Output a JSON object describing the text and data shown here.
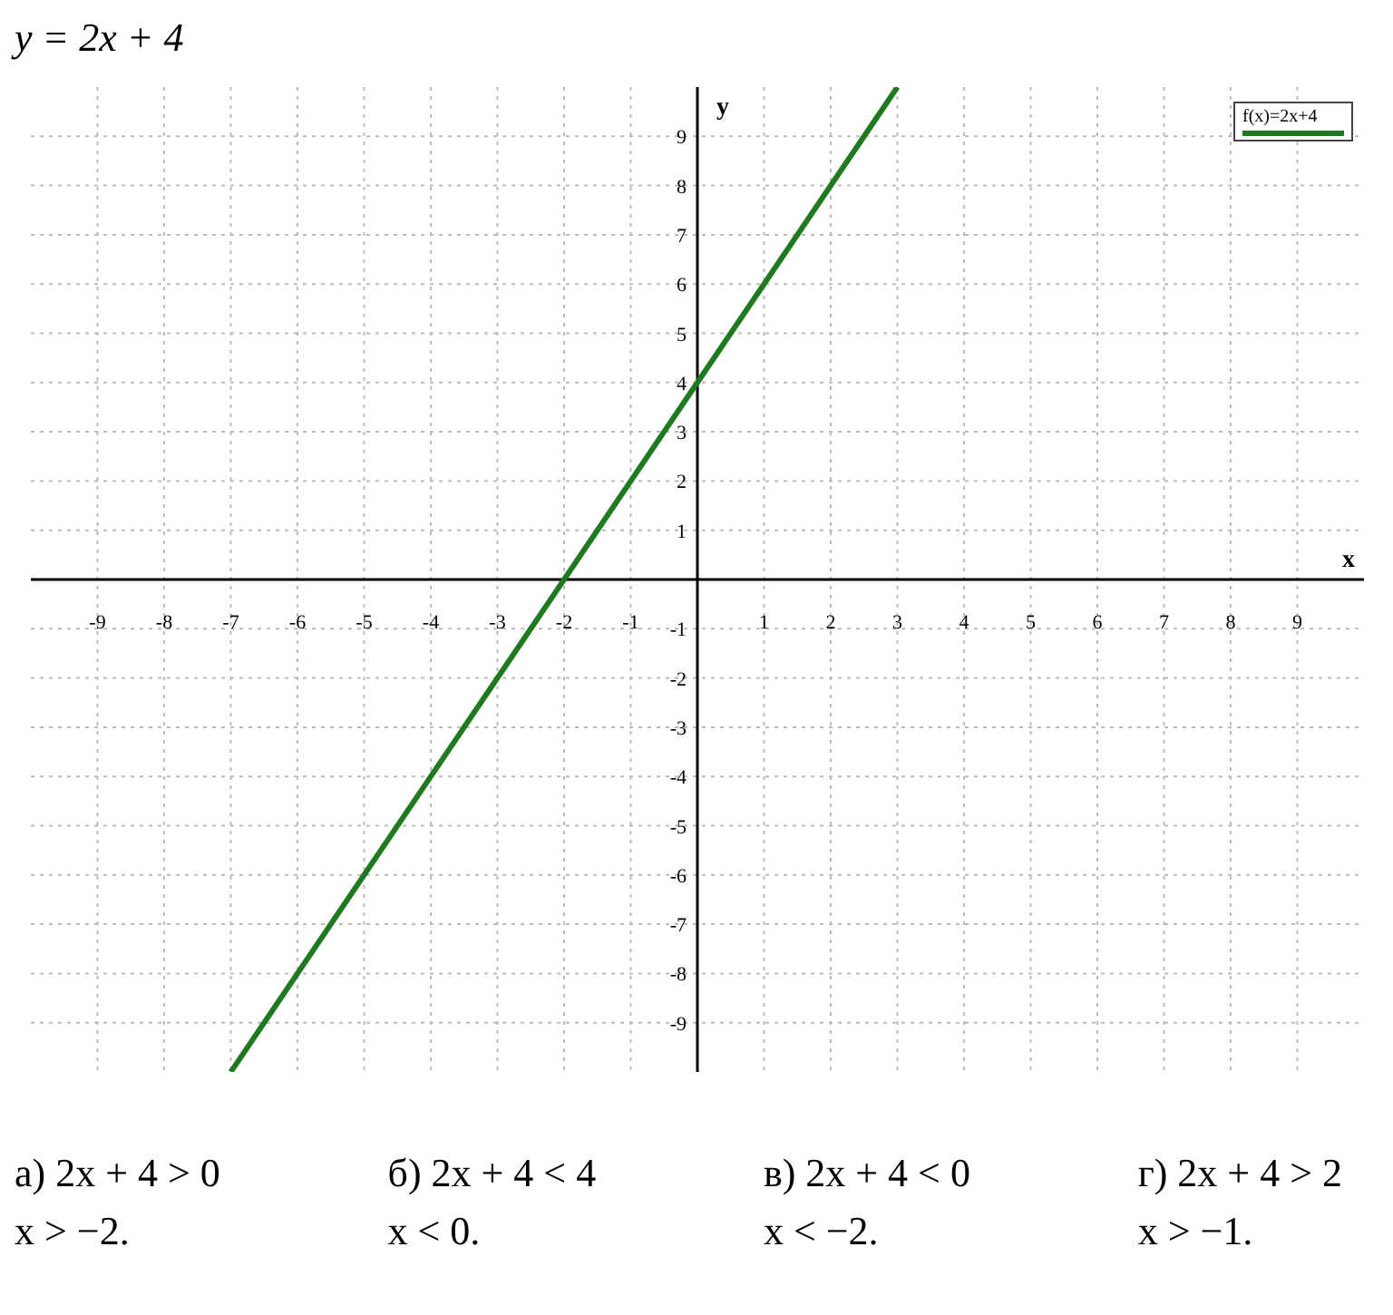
{
  "chart_data": {
    "type": "line",
    "title": "y = 2x + 4",
    "xlabel": "x",
    "ylabel": "y",
    "x": [
      -7,
      3
    ],
    "series": [
      {
        "name": "f(x)=2x+4",
        "color": "#1f7a1f",
        "values": [
          -10,
          10
        ]
      }
    ],
    "xlim": [
      -10,
      10
    ],
    "ylim": [
      -10,
      10
    ],
    "xticks": [
      -9,
      -8,
      -7,
      -6,
      -5,
      -4,
      -3,
      -2,
      -1,
      {
        "value": 0,
        "label": null
      },
      1,
      2,
      3,
      4,
      5,
      6,
      7,
      8,
      9
    ],
    "yticks": [
      -9,
      -8,
      -7,
      -6,
      -5,
      -4,
      -3,
      -2,
      -1,
      {
        "value": 0,
        "label": null
      },
      1,
      2,
      3,
      4,
      5,
      6,
      7,
      8,
      9
    ],
    "grid": true,
    "legend": "top right",
    "marker": "none",
    "line_style": "solid",
    "annotations": [
      "а) 2x + 4 > 0",
      "x > −2.",
      "б) 2x + 4 < 4",
      "x < 0.",
      "в) 2x + 4 < 0",
      "x < −2.",
      "г) 2x + 4 > 2",
      "x > −1."
    ]
  }
}
